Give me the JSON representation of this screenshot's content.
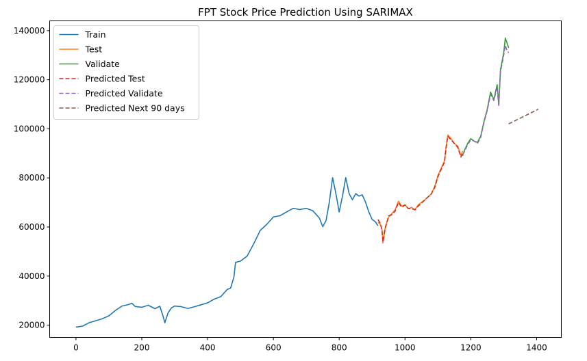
{
  "chart_data": {
    "type": "line",
    "title": "FPT Stock Price Prediction Using SARIMAX",
    "xlabel": "",
    "ylabel": "",
    "xlim": [
      -80,
      1475
    ],
    "ylim": [
      15000,
      144000
    ],
    "x_ticks": [
      0,
      200,
      400,
      600,
      800,
      1000,
      1200,
      1400
    ],
    "y_ticks": [
      20000,
      40000,
      60000,
      80000,
      100000,
      120000,
      140000
    ],
    "x_tick_labels": [
      "0",
      "200",
      "400",
      "600",
      "800",
      "1000",
      "1200",
      "1400"
    ],
    "y_tick_labels": [
      "20000",
      "40000",
      "60000",
      "80000",
      "100000",
      "120000",
      "140000"
    ],
    "grid": false,
    "legend_position": "upper-left",
    "series": [
      {
        "name": "Train",
        "color": "#1f77b4",
        "style": "solid",
        "points": [
          [
            0,
            19200
          ],
          [
            20,
            19600
          ],
          [
            40,
            21000
          ],
          [
            60,
            21800
          ],
          [
            80,
            22600
          ],
          [
            100,
            23800
          ],
          [
            120,
            26000
          ],
          [
            140,
            27800
          ],
          [
            160,
            28400
          ],
          [
            170,
            28900
          ],
          [
            180,
            27600
          ],
          [
            200,
            27300
          ],
          [
            220,
            28100
          ],
          [
            240,
            26700
          ],
          [
            255,
            27700
          ],
          [
            265,
            23500
          ],
          [
            270,
            21000
          ],
          [
            280,
            25000
          ],
          [
            290,
            27000
          ],
          [
            300,
            27800
          ],
          [
            320,
            27500
          ],
          [
            340,
            26800
          ],
          [
            360,
            27500
          ],
          [
            380,
            28300
          ],
          [
            400,
            29100
          ],
          [
            420,
            30600
          ],
          [
            440,
            31600
          ],
          [
            460,
            34600
          ],
          [
            470,
            35100
          ],
          [
            480,
            39600
          ],
          [
            485,
            45600
          ],
          [
            500,
            46100
          ],
          [
            520,
            48100
          ],
          [
            540,
            53100
          ],
          [
            560,
            58600
          ],
          [
            580,
            61100
          ],
          [
            600,
            64100
          ],
          [
            620,
            64600
          ],
          [
            640,
            66100
          ],
          [
            660,
            67600
          ],
          [
            680,
            67100
          ],
          [
            700,
            67600
          ],
          [
            720,
            66600
          ],
          [
            740,
            63600
          ],
          [
            750,
            60100
          ],
          [
            760,
            62600
          ],
          [
            770,
            70100
          ],
          [
            780,
            80100
          ],
          [
            790,
            73600
          ],
          [
            800,
            66100
          ],
          [
            810,
            72600
          ],
          [
            820,
            80100
          ],
          [
            830,
            73600
          ],
          [
            840,
            71100
          ],
          [
            850,
            73600
          ],
          [
            860,
            72600
          ],
          [
            870,
            73100
          ],
          [
            880,
            70100
          ],
          [
            890,
            66100
          ],
          [
            900,
            63100
          ],
          [
            910,
            62100
          ],
          [
            918,
            60500
          ]
        ]
      },
      {
        "name": "Test",
        "color": "#ff7f0e",
        "style": "solid",
        "points": [
          [
            918,
            62000
          ],
          [
            925,
            61000
          ],
          [
            930,
            59000
          ],
          [
            933,
            53500
          ],
          [
            940,
            60000
          ],
          [
            950,
            64000
          ],
          [
            960,
            65500
          ],
          [
            970,
            67000
          ],
          [
            980,
            70500
          ],
          [
            990,
            68500
          ],
          [
            1000,
            69000
          ],
          [
            1010,
            67500
          ],
          [
            1020,
            68000
          ],
          [
            1030,
            67000
          ],
          [
            1040,
            69000
          ],
          [
            1060,
            71000
          ],
          [
            1080,
            73500
          ],
          [
            1090,
            76500
          ],
          [
            1100,
            81000
          ],
          [
            1110,
            84000
          ],
          [
            1120,
            87000
          ],
          [
            1125,
            93000
          ],
          [
            1130,
            97500
          ],
          [
            1140,
            96000
          ],
          [
            1150,
            94000
          ],
          [
            1160,
            93000
          ],
          [
            1170,
            89000
          ],
          [
            1175,
            91000
          ]
        ]
      },
      {
        "name": "Validate",
        "color": "#2ca02c",
        "style": "solid",
        "points": [
          [
            1175,
            89000
          ],
          [
            1180,
            91000
          ],
          [
            1190,
            94000
          ],
          [
            1200,
            96000
          ],
          [
            1210,
            95000
          ],
          [
            1220,
            94500
          ],
          [
            1230,
            97000
          ],
          [
            1240,
            103000
          ],
          [
            1250,
            108000
          ],
          [
            1260,
            115000
          ],
          [
            1270,
            112000
          ],
          [
            1280,
            118000
          ],
          [
            1285,
            110000
          ],
          [
            1290,
            124000
          ],
          [
            1300,
            131000
          ],
          [
            1305,
            137000
          ],
          [
            1310,
            135000
          ],
          [
            1315,
            133000
          ]
        ]
      },
      {
        "name": "Predicted Test",
        "color": "#d62728",
        "style": "dashed",
        "points": [
          [
            918,
            63000
          ],
          [
            925,
            61500
          ],
          [
            930,
            58500
          ],
          [
            933,
            54000
          ],
          [
            940,
            59500
          ],
          [
            950,
            64500
          ],
          [
            960,
            65000
          ],
          [
            970,
            66500
          ],
          [
            980,
            70000
          ],
          [
            990,
            68000
          ],
          [
            1000,
            69000
          ],
          [
            1010,
            67500
          ],
          [
            1020,
            67500
          ],
          [
            1030,
            67000
          ],
          [
            1040,
            68500
          ],
          [
            1060,
            71000
          ],
          [
            1080,
            73500
          ],
          [
            1090,
            76000
          ],
          [
            1100,
            80500
          ],
          [
            1110,
            83500
          ],
          [
            1120,
            86500
          ],
          [
            1125,
            92500
          ],
          [
            1130,
            97000
          ],
          [
            1140,
            95500
          ],
          [
            1150,
            94000
          ],
          [
            1160,
            92500
          ],
          [
            1170,
            88500
          ],
          [
            1175,
            90500
          ]
        ]
      },
      {
        "name": "Predicted Validate",
        "color": "#9467bd",
        "style": "dashed",
        "points": [
          [
            1175,
            89500
          ],
          [
            1180,
            90500
          ],
          [
            1190,
            93500
          ],
          [
            1200,
            95500
          ],
          [
            1210,
            95000
          ],
          [
            1220,
            94000
          ],
          [
            1230,
            96500
          ],
          [
            1240,
            102500
          ],
          [
            1250,
            107500
          ],
          [
            1260,
            114000
          ],
          [
            1270,
            111500
          ],
          [
            1280,
            117000
          ],
          [
            1285,
            109000
          ],
          [
            1290,
            123000
          ],
          [
            1300,
            130000
          ],
          [
            1305,
            134000
          ],
          [
            1310,
            132000
          ],
          [
            1315,
            131000
          ]
        ]
      },
      {
        "name": "Predicted Next 90 days",
        "color": "#8c564b",
        "style": "dashed",
        "points": [
          [
            1315,
            102000
          ],
          [
            1405,
            108000
          ]
        ]
      }
    ]
  }
}
